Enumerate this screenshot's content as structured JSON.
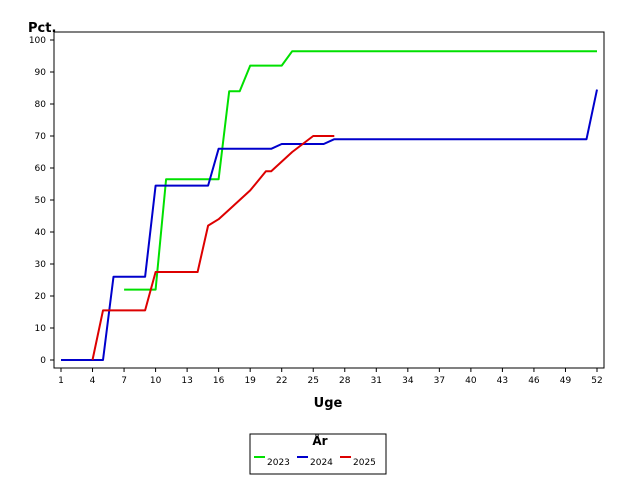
{
  "chart_data": {
    "type": "line",
    "ylabel": "Pct.",
    "xlabel": "Uge",
    "xlim": [
      1,
      52
    ],
    "ylim": [
      0,
      100
    ],
    "x_ticks": [
      1,
      4,
      7,
      10,
      13,
      16,
      19,
      22,
      25,
      28,
      31,
      34,
      37,
      40,
      43,
      46,
      49,
      52
    ],
    "y_ticks": [
      0,
      10,
      20,
      30,
      40,
      50,
      60,
      70,
      80,
      90,
      100
    ],
    "grid": false,
    "legend": {
      "title": "År",
      "placement": "bottom-center"
    },
    "series": [
      {
        "name": "2023",
        "color": "#00e000",
        "points": [
          [
            7,
            22
          ],
          [
            9,
            22
          ],
          [
            10,
            22
          ],
          [
            11,
            56.5
          ],
          [
            15,
            56.5
          ],
          [
            16,
            56.5
          ],
          [
            17,
            84
          ],
          [
            18,
            84
          ],
          [
            19,
            92
          ],
          [
            22,
            92
          ],
          [
            23,
            96.5
          ],
          [
            52,
            96.5
          ]
        ]
      },
      {
        "name": "2024",
        "color": "#0000cc",
        "points": [
          [
            1,
            0
          ],
          [
            5,
            0
          ],
          [
            6,
            26
          ],
          [
            9,
            26
          ],
          [
            10,
            54.5
          ],
          [
            15,
            54.5
          ],
          [
            16,
            66
          ],
          [
            21,
            66
          ],
          [
            22,
            67.5
          ],
          [
            26,
            67.5
          ],
          [
            27,
            69
          ],
          [
            51,
            69
          ],
          [
            52,
            84.5
          ]
        ]
      },
      {
        "name": "2025",
        "color": "#dd0000",
        "points": [
          [
            4,
            0
          ],
          [
            5,
            15.5
          ],
          [
            9,
            15.5
          ],
          [
            10,
            27.5
          ],
          [
            14,
            27.5
          ],
          [
            15,
            42
          ],
          [
            16,
            44
          ],
          [
            17,
            47
          ],
          [
            18,
            50
          ],
          [
            19,
            53
          ],
          [
            20,
            57
          ],
          [
            20.5,
            59
          ],
          [
            21,
            59
          ],
          [
            22,
            62
          ],
          [
            23,
            65
          ],
          [
            24,
            67.5
          ],
          [
            25,
            70
          ],
          [
            27,
            70
          ]
        ]
      }
    ]
  }
}
